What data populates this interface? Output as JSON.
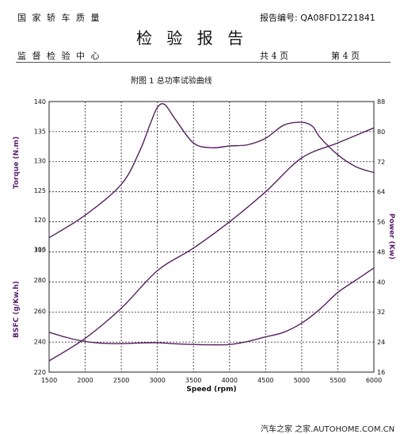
{
  "header": {
    "org": "国 家 轿 车 质 量",
    "report_no": "报告编号: QA08FD1Z21841",
    "title": "检 验 报 告",
    "center": "监 督 检 验 中 心",
    "pages_total": "共   4   页",
    "page_current": "第   4   页"
  },
  "caption": "附图 1    总功率试验曲线",
  "watermark": "汽车之家 之家.AUTOHOME.COM.CN",
  "chart_data": {
    "type": "line",
    "title": "附图 1    总功率试验曲线",
    "xlabel": "Speed (rpm)",
    "x_ticks": [
      "1500",
      "2000",
      "2500",
      "3000",
      "3500",
      "4000",
      "4500",
      "5000",
      "5500",
      "6000"
    ],
    "xlim": [
      1500,
      6000
    ],
    "left_axis": {
      "torque_label": "Torque (N.m)",
      "torque_ticks": [
        "140",
        "135",
        "130",
        "125",
        "120",
        "115"
      ],
      "bsfc_label": "BSFC (g/Kw.h)",
      "bsfc_ticks": [
        "300",
        "280",
        "260",
        "240",
        "220"
      ]
    },
    "right_axis": {
      "label": "Power (Kw)",
      "ticks": [
        "88",
        "80",
        "72",
        "64",
        "56",
        "48",
        "40",
        "32",
        "24",
        "16"
      ],
      "ylim": [
        16,
        88
      ]
    },
    "grid": true,
    "series": [
      {
        "x": [
          1500,
          2000,
          2500,
          2750,
          2900,
          3000,
          3100,
          3250,
          3500,
          3750,
          4000,
          4250,
          4500,
          4750,
          5000,
          5150,
          5250,
          5500,
          5750,
          6000
        ],
        "values": [
          117.0,
          120.8,
          126.0,
          131.5,
          136.2,
          139.0,
          139.5,
          137.0,
          133.0,
          132.2,
          132.5,
          132.7,
          133.8,
          136.0,
          136.5,
          135.8,
          134.0,
          131.0,
          129.0,
          128.0
        ],
        "unit": "Torque (N.m)"
      },
      {
        "x": [
          1500,
          2000,
          2500,
          3000,
          3500,
          4000,
          4500,
          5000,
          5500,
          6000
        ],
        "values": [
          19,
          25,
          33,
          43,
          49,
          56,
          64,
          73,
          77,
          81
        ],
        "unit": "Power (Kw)"
      },
      {
        "x": [
          1500,
          1750,
          2000,
          2250,
          2500,
          2750,
          3000,
          3250,
          3500,
          3750,
          4000,
          4250,
          4500,
          4750,
          5000,
          5250,
          5500,
          5750,
          6000
        ],
        "values": [
          246.0,
          242.5,
          240.0,
          238.8,
          238.6,
          239.0,
          239.2,
          238.5,
          238.0,
          237.8,
          238.0,
          240.0,
          243.0,
          246.0,
          252.0,
          261.0,
          272.0,
          280.0,
          288.0
        ],
        "unit": "BSFC (g/Kw.h)"
      }
    ]
  }
}
